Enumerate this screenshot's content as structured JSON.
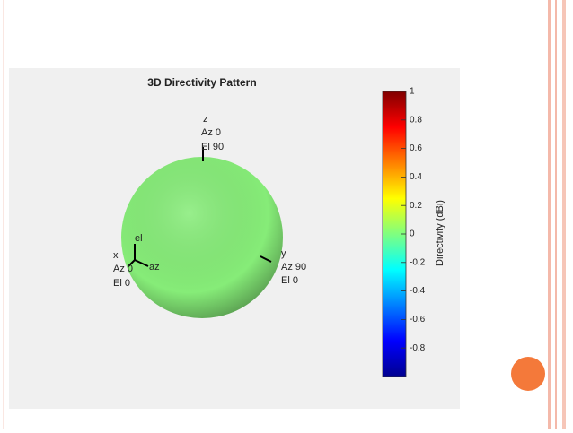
{
  "chart_data": {
    "type": "sphere",
    "title": "3D Directivity Pattern",
    "annotations": [
      "z",
      "Az 0",
      "El 90",
      "x",
      "Az 0",
      "El 0",
      "y",
      "Az 90",
      "El 0",
      "el",
      "az"
    ],
    "colorbar_label": "Directivity (dBi)",
    "clim": [
      -1,
      1
    ],
    "cticks": [
      1,
      0.8,
      0.6,
      0.4,
      0.2,
      0,
      -0.2,
      -0.4,
      -0.6,
      -0.8
    ],
    "color": "#86ec78"
  }
}
